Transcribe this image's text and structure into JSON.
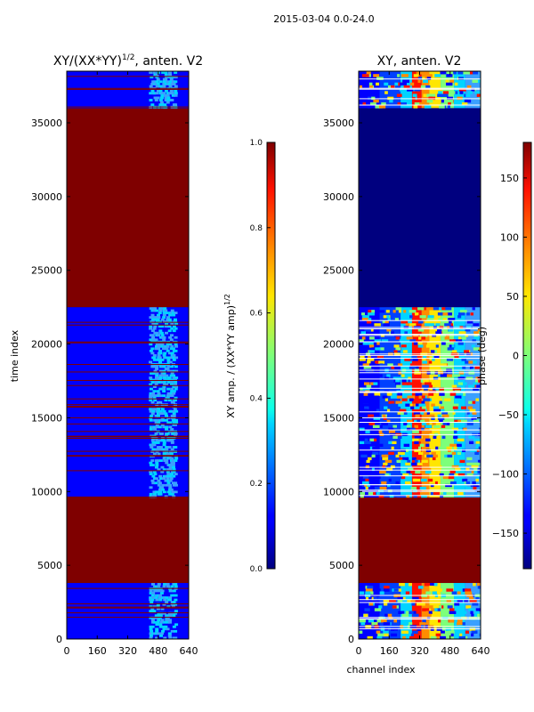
{
  "figure": {
    "suptitle": "2015-03-04 0.0-24.0"
  },
  "colors": {
    "dark_red": "#7f0000",
    "dark_blue": "#00007f",
    "blue": "#0000ff",
    "cyan": "#00d4ff",
    "green": "#7dff7a",
    "yellow": "#ffe600",
    "orange": "#ff8c00",
    "red": "#ff1000"
  },
  "chart_data": [
    {
      "type": "heatmap",
      "title_main": "XY/(XX*YY)",
      "title_sup": "1/2",
      "title_rest": ", anten. V2",
      "xlabel": "",
      "ylabel": "time index",
      "xlim": [
        0,
        640
      ],
      "ylim": [
        0,
        38500
      ],
      "xticks": [
        0,
        160,
        320,
        480,
        640
      ],
      "yticks": [
        0,
        5000,
        10000,
        15000,
        20000,
        25000,
        30000,
        35000
      ],
      "bands": [
        {
          "y0": 0,
          "y1": 3800,
          "kind": "data"
        },
        {
          "y0": 3800,
          "y1": 9600,
          "kind": "flag"
        },
        {
          "y0": 9600,
          "y1": 22500,
          "kind": "data"
        },
        {
          "y0": 22500,
          "y1": 36000,
          "kind": "flag"
        },
        {
          "y0": 36000,
          "y1": 38500,
          "kind": "data"
        }
      ],
      "colorbar": {
        "label_main": "XY amp. / (XX*YY amp)",
        "label_sup": "1/2",
        "vmin": 0.0,
        "vmax": 1.0,
        "ticks": [
          "0.0",
          "0.2",
          "0.4",
          "0.6",
          "0.8",
          "1.0"
        ]
      }
    },
    {
      "type": "heatmap",
      "title": "XY, anten. V2",
      "xlabel": "channel index",
      "ylabel": "",
      "xlim": [
        0,
        640
      ],
      "ylim": [
        0,
        38500
      ],
      "xticks": [
        0,
        160,
        320,
        480,
        640
      ],
      "yticks": [
        0,
        5000,
        10000,
        15000,
        20000,
        25000,
        30000,
        35000
      ],
      "bands": [
        {
          "y0": 0,
          "y1": 3800,
          "kind": "data"
        },
        {
          "y0": 3800,
          "y1": 9600,
          "kind": "flag"
        },
        {
          "y0": 9600,
          "y1": 22500,
          "kind": "data"
        },
        {
          "y0": 22500,
          "y1": 36000,
          "kind": "low"
        },
        {
          "y0": 36000,
          "y1": 38500,
          "kind": "data"
        }
      ],
      "colorbar": {
        "label": "phase (deg)",
        "vmin": -180,
        "vmax": 180,
        "ticks": [
          "−150",
          "−100",
          "−50",
          "0",
          "50",
          "100",
          "150"
        ],
        "tick_values": [
          -150,
          -100,
          -50,
          0,
          50,
          100,
          150
        ]
      }
    }
  ]
}
